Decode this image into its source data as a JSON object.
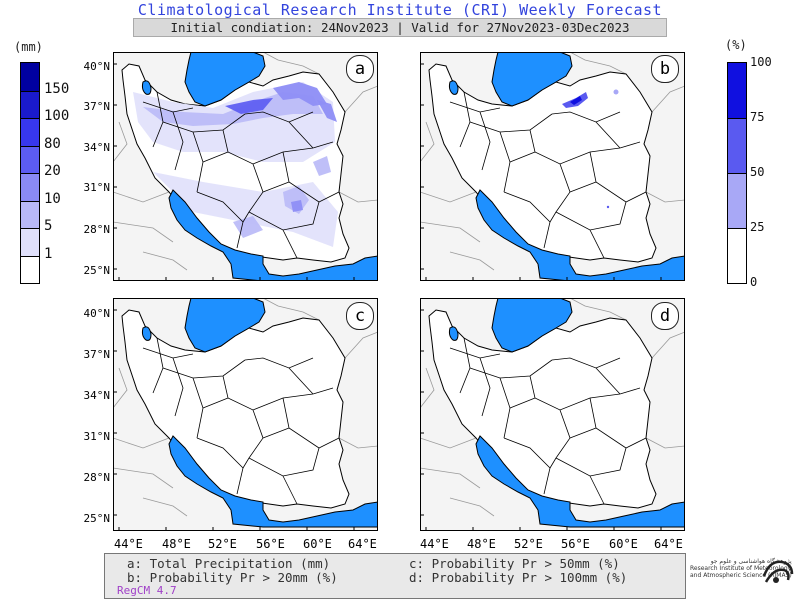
{
  "title": "Climatological Research Institute (CRI) Weekly Forecast",
  "subtitle": "Initial condiation: 24Nov2023 | Valid for 27Nov2023-03Dec2023",
  "left_colorbar": {
    "unit": "(mm)",
    "labels": [
      "150",
      "100",
      "80",
      "20",
      "10",
      "5",
      "1"
    ],
    "colors": [
      "#0000a0",
      "#1a1acc",
      "#3737ee",
      "#5c5cf2",
      "#8a8af5",
      "#b8b8f8",
      "#e0e0fb",
      "#ffffff"
    ]
  },
  "right_colorbar": {
    "unit": "(%)",
    "labels": [
      "100",
      "75",
      "50",
      "25",
      "0"
    ],
    "colors": [
      "#1010e0",
      "#5a5af0",
      "#a8a8f6",
      "#ffffff"
    ]
  },
  "panels": [
    {
      "label": "a"
    },
    {
      "label": "b"
    },
    {
      "label": "c"
    },
    {
      "label": "d"
    }
  ],
  "lat_labels": [
    "40°N",
    "37°N",
    "34°N",
    "31°N",
    "28°N",
    "25°N"
  ],
  "lon_labels": [
    "44°E",
    "48°E",
    "52°E",
    "56°E",
    "60°E",
    "64°E"
  ],
  "legend": {
    "a": "a: Total Precipitation (mm)",
    "b": "b: Probability Pr > 20mm (%)",
    "c": "c: Probability Pr > 50mm (%)",
    "d": "d: Probability Pr > 100mm (%)",
    "model": "RegCM 4.7"
  },
  "logo": {
    "text_fa": "پژوهشگاه هواشناسی و علوم جو",
    "text_en1": "Research Institute of Meteorology",
    "text_en2": "and Atmospheric Science (RIMAS)"
  }
}
